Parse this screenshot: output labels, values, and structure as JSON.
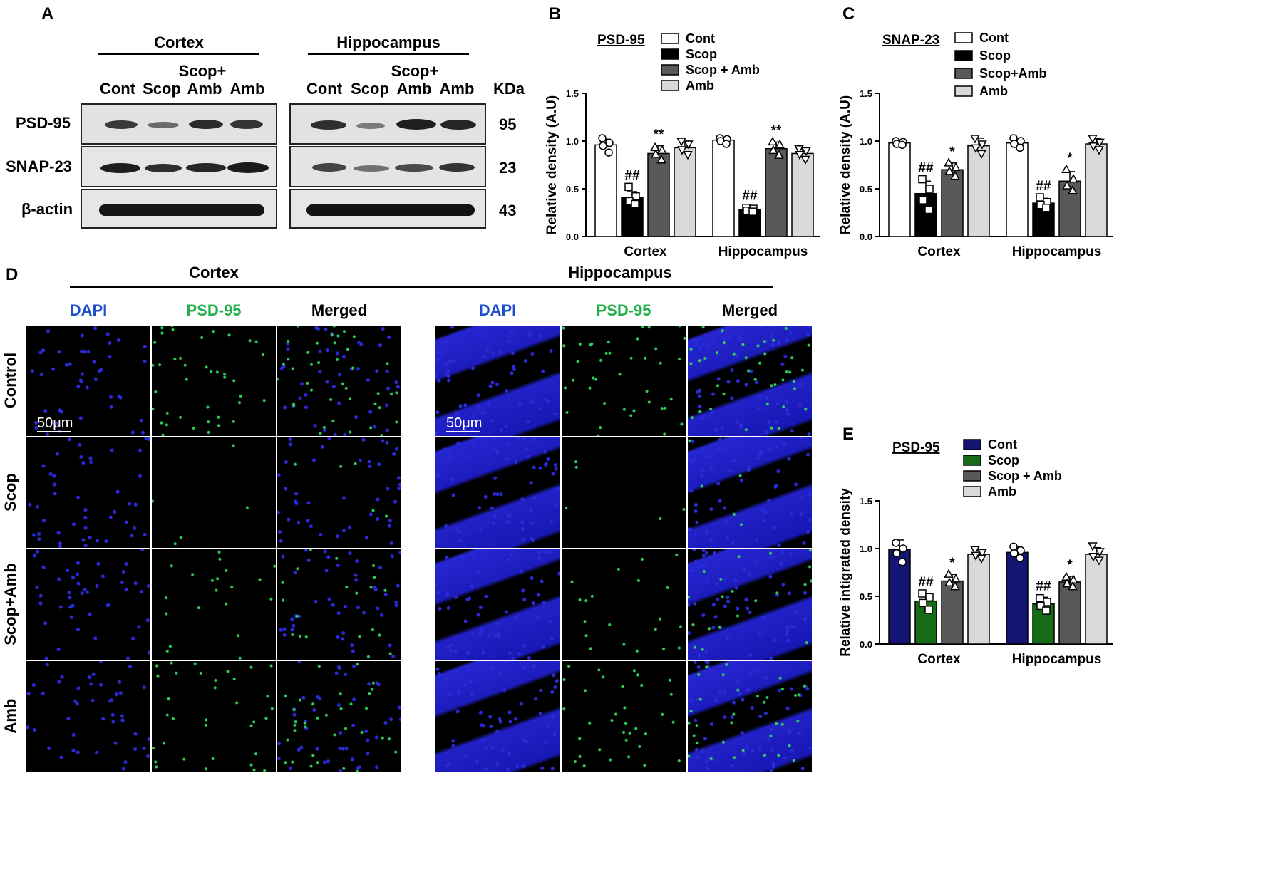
{
  "panel_A": {
    "letter": "A",
    "regions": [
      "Cortex",
      "Hippocampus"
    ],
    "lane_top": [
      "Scop+",
      "Scop+"
    ],
    "lanes": [
      "Cont",
      "Scop",
      "Amb",
      "Amb"
    ],
    "kda_label": "KDa",
    "proteins": [
      "PSD-95",
      "SNAP-23",
      "β-actin"
    ],
    "kda_values": [
      "95",
      "23",
      "43"
    ]
  },
  "panel_D": {
    "letter": "D",
    "regions": [
      "Cortex",
      "Hippocampus"
    ],
    "channels": [
      "DAPI",
      "PSD-95",
      "Merged"
    ],
    "rows": [
      "Control",
      "Scop",
      "Scop+Amb",
      "Amb"
    ],
    "scale_bar": "50μm",
    "colors": {
      "dapi": "#1a1aa8",
      "psd95": "#22b04b",
      "merged": "#1a1aa8"
    }
  },
  "chart_data": [
    {
      "panel": "B",
      "type": "bar",
      "title": "PSD-95",
      "ylabel": "Relative density (A.U)",
      "ylim": [
        0,
        1.5
      ],
      "yticks": [
        "0.0",
        "0.5",
        "1.0",
        "1.5"
      ],
      "categories": [
        "Cortex",
        "Hippocampus"
      ],
      "legend_position": "top-right",
      "series": [
        {
          "name": "Cont",
          "color": "#ffffff",
          "marker": "circle",
          "values": [
            0.96,
            1.01
          ],
          "err": [
            0.06,
            0.03
          ],
          "points": [
            [
              1.03,
              0.98,
              0.95,
              0.88
            ],
            [
              1.03,
              1.02,
              1.0,
              0.97
            ]
          ]
        },
        {
          "name": "Scop",
          "color": "#000000",
          "marker": "square",
          "values": [
            0.41,
            0.28
          ],
          "err": [
            0.06,
            0.03
          ],
          "points": [
            [
              0.52,
              0.42,
              0.37,
              0.34
            ],
            [
              0.3,
              0.29,
              0.27,
              0.26
            ]
          ]
        },
        {
          "name": "Scop + Amb",
          "color": "#595959",
          "marker": "triangle",
          "values": [
            0.87,
            0.92
          ],
          "err": [
            0.08,
            0.07
          ],
          "points": [
            [
              0.93,
              0.9,
              0.86,
              0.8
            ],
            [
              0.99,
              0.96,
              0.9,
              0.85
            ]
          ]
        },
        {
          "name": "Amb",
          "color": "#d9d9d9",
          "marker": "inv-triangle",
          "values": [
            0.93,
            0.87
          ],
          "err": [
            0.07,
            0.05
          ],
          "points": [
            [
              1.0,
              0.97,
              0.91,
              0.86
            ],
            [
              0.92,
              0.9,
              0.86,
              0.81
            ]
          ]
        }
      ],
      "annotations": [
        {
          "series": 1,
          "category": 0,
          "text": "##"
        },
        {
          "series": 2,
          "category": 0,
          "text": "**"
        },
        {
          "series": 1,
          "category": 1,
          "text": "##"
        },
        {
          "series": 2,
          "category": 1,
          "text": "**"
        }
      ]
    },
    {
      "panel": "C",
      "type": "bar",
      "title": "SNAP-23",
      "ylabel": "Relative density (A.U)",
      "ylim": [
        0,
        1.5
      ],
      "yticks": [
        "0.0",
        "0.5",
        "1.0",
        "1.5"
      ],
      "categories": [
        "Cortex",
        "Hippocampus"
      ],
      "legend_position": "top-right",
      "series": [
        {
          "name": "Cont",
          "color": "#ffffff",
          "marker": "circle",
          "values": [
            0.98,
            0.98
          ],
          "err": [
            0.03,
            0.04
          ],
          "points": [
            [
              1.0,
              0.99,
              0.97,
              0.96
            ],
            [
              1.03,
              1.0,
              0.97,
              0.93
            ]
          ]
        },
        {
          "name": "Scop",
          "color": "#000000",
          "marker": "square",
          "values": [
            0.45,
            0.35
          ],
          "err": [
            0.13,
            0.05
          ],
          "points": [
            [
              0.6,
              0.5,
              0.38,
              0.28
            ],
            [
              0.41,
              0.36,
              0.33,
              0.3
            ]
          ]
        },
        {
          "name": "Scop+Amb",
          "color": "#595959",
          "marker": "triangle",
          "values": [
            0.7,
            0.58
          ],
          "err": [
            0.07,
            0.1
          ],
          "points": [
            [
              0.77,
              0.72,
              0.68,
              0.63
            ],
            [
              0.7,
              0.6,
              0.53,
              0.48
            ]
          ]
        },
        {
          "name": "Amb",
          "color": "#d9d9d9",
          "marker": "inv-triangle",
          "values": [
            0.95,
            0.97
          ],
          "err": [
            0.08,
            0.06
          ],
          "points": [
            [
              1.03,
              0.97,
              0.93,
              0.87
            ],
            [
              1.03,
              0.99,
              0.95,
              0.91
            ]
          ]
        }
      ],
      "annotations": [
        {
          "series": 1,
          "category": 0,
          "text": "##"
        },
        {
          "series": 2,
          "category": 0,
          "text": "*"
        },
        {
          "series": 1,
          "category": 1,
          "text": "##"
        },
        {
          "series": 2,
          "category": 1,
          "text": "*"
        }
      ]
    },
    {
      "panel": "E",
      "type": "bar",
      "title": "PSD-95",
      "ylabel": "Relative intigrated density",
      "ylim": [
        0,
        1.5
      ],
      "yticks": [
        "0.0",
        "0.5",
        "1.0",
        "1.5"
      ],
      "categories": [
        "Cortex",
        "Hippocampus"
      ],
      "legend_position": "top-right",
      "series": [
        {
          "name": "Cont",
          "color": "#141473",
          "marker": "circle",
          "values": [
            0.99,
            0.96
          ],
          "err": [
            0.1,
            0.06
          ],
          "points": [
            [
              1.06,
              1.0,
              0.95,
              0.86
            ],
            [
              1.02,
              0.98,
              0.95,
              0.9
            ]
          ]
        },
        {
          "name": "Scop",
          "color": "#166b16",
          "marker": "square",
          "values": [
            0.45,
            0.42
          ],
          "err": [
            0.07,
            0.07
          ],
          "points": [
            [
              0.53,
              0.49,
              0.43,
              0.36
            ],
            [
              0.48,
              0.44,
              0.4,
              0.35
            ]
          ]
        },
        {
          "name": "Scop + Amb",
          "color": "#595959",
          "marker": "triangle",
          "values": [
            0.66,
            0.65
          ],
          "err": [
            0.07,
            0.06
          ],
          "points": [
            [
              0.73,
              0.68,
              0.64,
              0.6
            ],
            [
              0.7,
              0.67,
              0.63,
              0.6
            ]
          ]
        },
        {
          "name": "Amb",
          "color": "#d9d9d9",
          "marker": "inv-triangle",
          "values": [
            0.94,
            0.94
          ],
          "err": [
            0.04,
            0.07
          ],
          "points": [
            [
              0.99,
              0.96,
              0.93,
              0.9
            ],
            [
              1.03,
              0.97,
              0.92,
              0.88
            ]
          ]
        }
      ],
      "annotations": [
        {
          "series": 1,
          "category": 0,
          "text": "##"
        },
        {
          "series": 2,
          "category": 0,
          "text": "*"
        },
        {
          "series": 1,
          "category": 1,
          "text": "##"
        },
        {
          "series": 2,
          "category": 1,
          "text": "*"
        }
      ]
    }
  ]
}
